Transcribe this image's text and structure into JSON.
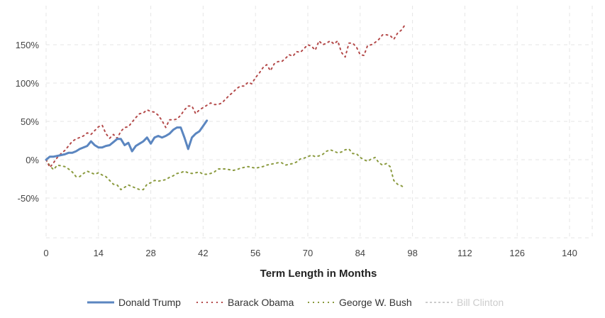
{
  "chart_data": {
    "type": "line",
    "xlabel": "Term Length in Months",
    "ylabel": "",
    "xlim": [
      0,
      145
    ],
    "ylim": [
      -100,
      190
    ],
    "x_ticks": [
      0,
      14,
      28,
      42,
      56,
      70,
      84,
      98,
      112,
      126,
      140
    ],
    "x_tick_labels": [
      "0",
      "14",
      "28",
      "42",
      "56",
      "70",
      "84",
      "98",
      "112",
      "126",
      "140"
    ],
    "y_ticks": [
      -50,
      0,
      50,
      100,
      150
    ],
    "y_tick_labels": [
      "-50%",
      "0%",
      "50%",
      "100%",
      "150%"
    ],
    "grid": true,
    "legend_position": "bottom",
    "series": [
      {
        "name": "Donald Trump",
        "color": "#5b86c0",
        "style": "solid",
        "x": [
          0,
          1,
          2,
          3,
          4,
          5,
          6,
          7,
          8,
          9,
          10,
          11,
          12,
          13,
          14,
          15,
          16,
          17,
          18,
          19,
          20,
          21,
          22,
          23,
          24,
          25,
          26,
          27,
          28,
          29,
          30,
          31,
          32,
          33,
          34,
          35,
          36,
          37,
          38,
          39,
          40,
          41,
          42,
          43
        ],
        "y": [
          0,
          4,
          4,
          5,
          6,
          7,
          9,
          9,
          11,
          14,
          16,
          18,
          24,
          19,
          16,
          16,
          18,
          19,
          23,
          27,
          27,
          19,
          22,
          11,
          18,
          21,
          24,
          29,
          21,
          29,
          31,
          29,
          31,
          34,
          39,
          42,
          42,
          29,
          14,
          29,
          34,
          37,
          44,
          51
        ]
      },
      {
        "name": "Barack Obama",
        "color": "#b44a4a",
        "style": "dotted",
        "x": [
          0,
          1,
          2,
          3,
          4,
          5,
          6,
          7,
          8,
          9,
          10,
          11,
          12,
          13,
          14,
          15,
          16,
          17,
          18,
          19,
          20,
          21,
          22,
          23,
          24,
          25,
          26,
          27,
          28,
          29,
          30,
          31,
          32,
          33,
          34,
          35,
          36,
          37,
          38,
          39,
          40,
          41,
          42,
          43,
          44,
          45,
          46,
          47,
          48,
          49,
          50,
          51,
          52,
          53,
          54,
          55,
          56,
          57,
          58,
          59,
          60,
          61,
          62,
          63,
          64,
          65,
          66,
          67,
          68,
          69,
          70,
          71,
          72,
          73,
          74,
          75,
          76,
          77,
          78,
          79,
          80,
          81,
          82,
          83,
          84,
          85,
          86,
          87,
          88,
          89,
          90,
          91,
          92,
          93,
          94,
          95,
          96
        ],
        "y": [
          0,
          -10,
          -4,
          3,
          8,
          12,
          18,
          24,
          27,
          29,
          31,
          35,
          33,
          38,
          43,
          45,
          34,
          28,
          33,
          28,
          37,
          42,
          43,
          49,
          55,
          60,
          61,
          65,
          63,
          62,
          58,
          51,
          42,
          52,
          52,
          53,
          58,
          65,
          70,
          70,
          60,
          65,
          68,
          71,
          74,
          72,
          72,
          74,
          79,
          84,
          88,
          93,
          96,
          96,
          101,
          99,
          107,
          113,
          120,
          124,
          116,
          125,
          128,
          128,
          132,
          137,
          135,
          141,
          140,
          145,
          150,
          148,
          143,
          155,
          150,
          152,
          155,
          151,
          155,
          140,
          134,
          152,
          152,
          147,
          137,
          136,
          149,
          150,
          153,
          157,
          163,
          163,
          162,
          157,
          165,
          169,
          176
        ]
      },
      {
        "name": "George W. Bush",
        "color": "#8a9a3e",
        "style": "dotted",
        "x": [
          0,
          1,
          2,
          3,
          4,
          5,
          6,
          7,
          8,
          9,
          10,
          11,
          12,
          13,
          14,
          15,
          16,
          17,
          18,
          19,
          20,
          21,
          22,
          23,
          24,
          25,
          26,
          27,
          28,
          29,
          30,
          31,
          32,
          33,
          34,
          35,
          36,
          37,
          38,
          39,
          40,
          41,
          42,
          43,
          44,
          45,
          46,
          47,
          48,
          49,
          50,
          51,
          52,
          53,
          54,
          55,
          56,
          57,
          58,
          59,
          60,
          61,
          62,
          63,
          64,
          65,
          66,
          67,
          68,
          69,
          70,
          71,
          72,
          73,
          74,
          75,
          76,
          77,
          78,
          79,
          80,
          81,
          82,
          83,
          84,
          85,
          86,
          87,
          88,
          89,
          90,
          91,
          92,
          93,
          94,
          95,
          96
        ],
        "y": [
          0,
          -8,
          -13,
          -7,
          -8,
          -9,
          -12,
          -16,
          -22,
          -22,
          -18,
          -15,
          -17,
          -19,
          -17,
          -20,
          -22,
          -27,
          -32,
          -33,
          -39,
          -36,
          -33,
          -35,
          -37,
          -39,
          -39,
          -32,
          -30,
          -27,
          -28,
          -27,
          -26,
          -23,
          -21,
          -18,
          -17,
          -15,
          -17,
          -18,
          -17,
          -16,
          -19,
          -19,
          -18,
          -16,
          -12,
          -12,
          -12,
          -13,
          -14,
          -13,
          -11,
          -10,
          -9,
          -10,
          -11,
          -10,
          -9,
          -7,
          -6,
          -5,
          -4,
          -4,
          -7,
          -6,
          -5,
          -3,
          1,
          2,
          4,
          6,
          4,
          5,
          7,
          11,
          13,
          11,
          9,
          10,
          13,
          14,
          8,
          8,
          3,
          0,
          -2,
          1,
          3,
          -4,
          -7,
          -5,
          -9,
          -27,
          -32,
          -34,
          -37
        ]
      },
      {
        "name": "Bill Clinton",
        "color": "#cccccc",
        "style": "dashed",
        "hidden": true,
        "x": [],
        "y": []
      }
    ]
  }
}
